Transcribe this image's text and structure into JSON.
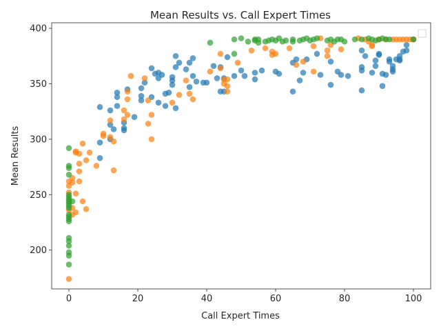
{
  "chart_data": {
    "type": "scatter",
    "title": "Mean Results vs. Call Expert Times",
    "xlabel": "Call Expert Times",
    "ylabel": "Mean Results",
    "xlim": [
      -5,
      105
    ],
    "ylim": [
      165,
      405
    ],
    "xticks": [
      0,
      20,
      40,
      60,
      80,
      100
    ],
    "yticks": [
      200,
      250,
      300,
      350,
      400
    ],
    "grid": false,
    "legend": "top-right",
    "series": [
      {
        "color": "#1f77b4",
        "points": [
          [
            9,
            329
          ],
          [
            9,
            297
          ],
          [
            9,
            283
          ],
          [
            12,
            326
          ],
          [
            12,
            313
          ],
          [
            12,
            300
          ],
          [
            13,
            309
          ],
          [
            14,
            342
          ],
          [
            14,
            338
          ],
          [
            14,
            330
          ],
          [
            16,
            315
          ],
          [
            16,
            310
          ],
          [
            16,
            308
          ],
          [
            17,
            345
          ],
          [
            19,
            320
          ],
          [
            21,
            346
          ],
          [
            21,
            339
          ],
          [
            21,
            335
          ],
          [
            22,
            351
          ],
          [
            24,
            364
          ],
          [
            24,
            338
          ],
          [
            25,
            359
          ],
          [
            26,
            360
          ],
          [
            26,
            355
          ],
          [
            26,
            333
          ],
          [
            27,
            358
          ],
          [
            28,
            341
          ],
          [
            28,
            330
          ],
          [
            29,
            342
          ],
          [
            30,
            356
          ],
          [
            30,
            353
          ],
          [
            30,
            349
          ],
          [
            31,
            375
          ],
          [
            31,
            365
          ],
          [
            31,
            328
          ],
          [
            32,
            369
          ],
          [
            34,
            363
          ],
          [
            35,
            369
          ],
          [
            35,
            347
          ],
          [
            36,
            373
          ],
          [
            36,
            357
          ],
          [
            37,
            352
          ],
          [
            39,
            351
          ],
          [
            40,
            351
          ],
          [
            42,
            366
          ],
          [
            43,
            355
          ],
          [
            44,
            365
          ],
          [
            44,
            343
          ],
          [
            45,
            355
          ],
          [
            45,
            343
          ],
          [
            46,
            374
          ],
          [
            48,
            357
          ],
          [
            50,
            362
          ],
          [
            51,
            357
          ],
          [
            54,
            360
          ],
          [
            54,
            354
          ],
          [
            56,
            362
          ],
          [
            60,
            361
          ],
          [
            61,
            359
          ],
          [
            65,
            369
          ],
          [
            65,
            343
          ],
          [
            66,
            372
          ],
          [
            67,
            353
          ],
          [
            68,
            360
          ],
          [
            69,
            372
          ],
          [
            72,
            377
          ],
          [
            73,
            358
          ],
          [
            76,
            370
          ],
          [
            76,
            349
          ],
          [
            78,
            361
          ],
          [
            79,
            358
          ],
          [
            81,
            357
          ],
          [
            85,
            380
          ],
          [
            85,
            365
          ],
          [
            85,
            362
          ],
          [
            85,
            344
          ],
          [
            86,
            375
          ],
          [
            88,
            360
          ],
          [
            89,
            371
          ],
          [
            89,
            366
          ],
          [
            90,
            377
          ],
          [
            90,
            376
          ],
          [
            91,
            359
          ],
          [
            91,
            348
          ],
          [
            92,
            358
          ],
          [
            93,
            372
          ],
          [
            93,
            370
          ],
          [
            94,
            366
          ],
          [
            94,
            363
          ],
          [
            94,
            361
          ],
          [
            95,
            372
          ],
          [
            96,
            375
          ],
          [
            96,
            372
          ],
          [
            96,
            371
          ],
          [
            97,
            379
          ],
          [
            98,
            385
          ],
          [
            98,
            380
          ],
          [
            100,
            390
          ]
        ]
      },
      {
        "color": "#ff7f0e",
        "points": [
          [
            0,
            174
          ],
          [
            0,
            236
          ],
          [
            0,
            252
          ],
          [
            0,
            258
          ],
          [
            0,
            262
          ],
          [
            1,
            265
          ],
          [
            1,
            261
          ],
          [
            1,
            238
          ],
          [
            1,
            232
          ],
          [
            2,
            289
          ],
          [
            2,
            288
          ],
          [
            2,
            251
          ],
          [
            2,
            234
          ],
          [
            3,
            287
          ],
          [
            3,
            278
          ],
          [
            3,
            271
          ],
          [
            3,
            262
          ],
          [
            4,
            296
          ],
          [
            4,
            244
          ],
          [
            5,
            281
          ],
          [
            5,
            237
          ],
          [
            6,
            288
          ],
          [
            8,
            276
          ],
          [
            10,
            305
          ],
          [
            10,
            303
          ],
          [
            12,
            317
          ],
          [
            12,
            302
          ],
          [
            13,
            298
          ],
          [
            13,
            272
          ],
          [
            16,
            326
          ],
          [
            16,
            318
          ],
          [
            17,
            343
          ],
          [
            17,
            336
          ],
          [
            17,
            322
          ],
          [
            18,
            357
          ],
          [
            22,
            355
          ],
          [
            23,
            335
          ],
          [
            23,
            314
          ],
          [
            24,
            322
          ],
          [
            24,
            300
          ],
          [
            30,
            333
          ],
          [
            32,
            340
          ],
          [
            34,
            353
          ],
          [
            35,
            341
          ],
          [
            36,
            336
          ],
          [
            41,
            361
          ],
          [
            44,
            377
          ],
          [
            44,
            364
          ],
          [
            45,
            354
          ],
          [
            45,
            350
          ],
          [
            46,
            354
          ],
          [
            46,
            348
          ],
          [
            46,
            343
          ],
          [
            49,
            369
          ],
          [
            53,
            380
          ],
          [
            57,
            382
          ],
          [
            59,
            379
          ],
          [
            59,
            376
          ],
          [
            60,
            377
          ],
          [
            64,
            382
          ],
          [
            66,
            367
          ],
          [
            68,
            370
          ],
          [
            71,
            384
          ],
          [
            71,
            361
          ],
          [
            73,
            391
          ],
          [
            75,
            380
          ],
          [
            75,
            375
          ],
          [
            76,
            385
          ],
          [
            79,
            381
          ],
          [
            84,
            391
          ],
          [
            86,
            390
          ],
          [
            87,
            388
          ],
          [
            88,
            385
          ],
          [
            88,
            384
          ],
          [
            90,
            390
          ],
          [
            92,
            390
          ],
          [
            94,
            390
          ],
          [
            95,
            390
          ],
          [
            96,
            390
          ],
          [
            97,
            390
          ],
          [
            98,
            390
          ],
          [
            99,
            390
          ],
          [
            100,
            390
          ]
        ]
      },
      {
        "color": "#2ca02c",
        "points": [
          [
            0,
            292
          ],
          [
            0,
            276
          ],
          [
            0,
            274
          ],
          [
            0,
            268
          ],
          [
            0,
            250
          ],
          [
            0,
            248
          ],
          [
            0,
            246
          ],
          [
            0,
            244
          ],
          [
            0,
            242
          ],
          [
            0,
            240
          ],
          [
            0,
            238
          ],
          [
            0,
            232
          ],
          [
            0,
            230
          ],
          [
            0,
            228
          ],
          [
            0,
            226
          ],
          [
            0,
            211
          ],
          [
            0,
            208
          ],
          [
            0,
            204
          ],
          [
            0,
            198
          ],
          [
            0,
            195
          ],
          [
            0,
            187
          ],
          [
            1,
            244
          ],
          [
            41,
            387
          ],
          [
            48,
            390
          ],
          [
            48,
            377
          ],
          [
            50,
            391
          ],
          [
            52,
            388
          ],
          [
            54,
            390
          ],
          [
            54,
            389
          ],
          [
            55,
            390
          ],
          [
            55,
            387
          ],
          [
            57,
            388
          ],
          [
            58,
            389
          ],
          [
            59,
            390
          ],
          [
            60,
            389
          ],
          [
            61,
            391
          ],
          [
            62,
            388
          ],
          [
            63,
            389
          ],
          [
            65,
            390
          ],
          [
            65,
            388
          ],
          [
            67,
            389
          ],
          [
            68,
            390
          ],
          [
            69,
            391
          ],
          [
            70,
            389
          ],
          [
            71,
            390
          ],
          [
            72,
            391
          ],
          [
            75,
            389
          ],
          [
            76,
            390
          ],
          [
            77,
            388
          ],
          [
            78,
            390
          ],
          [
            79,
            390
          ],
          [
            80,
            388
          ],
          [
            83,
            390
          ],
          [
            85,
            390
          ],
          [
            87,
            391
          ],
          [
            88,
            390
          ],
          [
            89,
            389
          ],
          [
            90,
            390
          ],
          [
            91,
            391
          ],
          [
            92,
            390
          ],
          [
            93,
            390
          ],
          [
            100,
            390
          ]
        ]
      }
    ]
  }
}
